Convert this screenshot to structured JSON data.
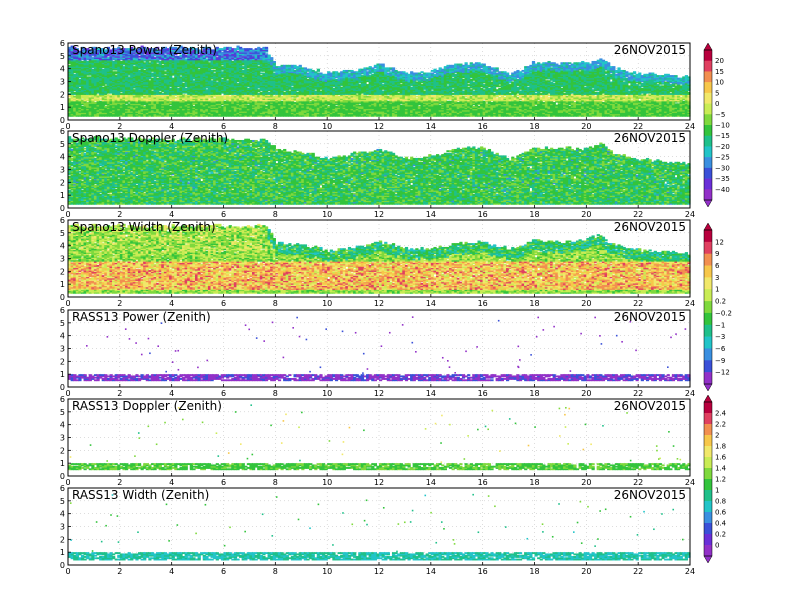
{
  "figure": {
    "date": "26NOV2015",
    "x_ticks": [
      "0",
      "2",
      "4",
      "6",
      "8",
      "10",
      "12",
      "14",
      "16",
      "18",
      "20",
      "22",
      "24"
    ],
    "y_ticks": [
      "0",
      "1",
      "2",
      "3",
      "4",
      "5",
      "6"
    ]
  },
  "colorbars": [
    {
      "id": "spano-power-doppler",
      "labels": [
        "20",
        "15",
        "10",
        "5",
        "0",
        "−5",
        "−10",
        "−15",
        "−20",
        "−25",
        "−30",
        "−35",
        "−40"
      ],
      "colors": [
        "#b8003d",
        "#e04060",
        "#f28f50",
        "#f7c74a",
        "#f1e86a",
        "#c9ec55",
        "#7fd93d",
        "#33c43c",
        "#1fc08a",
        "#22c4c8",
        "#3a8fe0",
        "#3a50d8",
        "#6a2fd8",
        "#9230c8"
      ]
    },
    {
      "id": "spano-width-rass-power",
      "labels": [
        "12",
        "9",
        "6",
        "3",
        "1",
        "0.2",
        "−0.2",
        "−1",
        "−3",
        "−6",
        "−9",
        "−12"
      ],
      "colors": [
        "#b8003d",
        "#e04060",
        "#f28f50",
        "#f7c74a",
        "#f1e86a",
        "#c9ec55",
        "#7fd93d",
        "#33c43c",
        "#1fc08a",
        "#22c4c8",
        "#3a8fe0",
        "#3a50d8",
        "#9230c8"
      ]
    },
    {
      "id": "rass-doppler-width",
      "labels": [
        "2.4",
        "2.2",
        "2",
        "1.8",
        "1.6",
        "1.4",
        "1.2",
        "1",
        "0.8",
        "0.6",
        "0.4",
        "0.2",
        "0"
      ],
      "colors": [
        "#b8003d",
        "#e04060",
        "#f28f50",
        "#f7c74a",
        "#f1e86a",
        "#c9ec55",
        "#7fd93d",
        "#33c43c",
        "#1fc08a",
        "#22c4c8",
        "#3a8fe0",
        "#3a50d8",
        "#6a2fd8",
        "#9230c8"
      ]
    }
  ],
  "chart_data": [
    {
      "type": "heatmap",
      "title": "Spano13 Power (Zenith)",
      "date": "26NOV2015",
      "xlim": [
        0,
        24
      ],
      "ylim": [
        0,
        6
      ],
      "colorbar": "spano-power-doppler",
      "mode": "spano-power",
      "max_height_profile": {
        "x": [
          0,
          2,
          4,
          6,
          7.6,
          8,
          9,
          10,
          11,
          12,
          13,
          14,
          15,
          16,
          17,
          18,
          19,
          20,
          20.5,
          21,
          22,
          23,
          24
        ],
        "y": [
          5.6,
          5.6,
          5.6,
          5.6,
          5.6,
          4.2,
          4.2,
          3.6,
          3.8,
          4.3,
          3.6,
          3.8,
          4.4,
          4.4,
          3.5,
          4.5,
          4.4,
          4.4,
          4.8,
          4.0,
          3.6,
          3.5,
          3.3
        ]
      },
      "bright_layer_height": [
        1.5,
        2.0
      ]
    },
    {
      "type": "heatmap",
      "title": "Spano13 Doppler (Zenith)",
      "date": "26NOV2015",
      "xlim": [
        0,
        24
      ],
      "ylim": [
        0,
        6
      ],
      "colorbar": "spano-power-doppler",
      "mode": "spano-doppler",
      "max_height_profile": {
        "x": [
          0,
          2,
          4,
          6,
          7.6,
          8,
          9,
          10,
          11,
          12,
          13,
          14,
          15,
          16,
          17,
          18,
          19,
          20,
          20.5,
          21,
          22,
          23,
          24
        ],
        "y": [
          5.4,
          5.4,
          5.3,
          5.3,
          5.3,
          4.5,
          4.3,
          3.8,
          4.2,
          4.5,
          3.8,
          4.0,
          4.6,
          4.6,
          3.8,
          4.6,
          4.6,
          4.6,
          5.0,
          4.2,
          3.8,
          3.6,
          3.4
        ]
      }
    },
    {
      "type": "heatmap",
      "title": "Spano13 Width (Zenith)",
      "date": "26NOV2015",
      "xlim": [
        0,
        24
      ],
      "ylim": [
        0,
        6
      ],
      "colorbar": "spano-width-rass-power",
      "mode": "spano-width",
      "max_height_profile": {
        "x": [
          0,
          2,
          4,
          6,
          7.6,
          8,
          9,
          10,
          11,
          12,
          13,
          14,
          15,
          16,
          17,
          18,
          19,
          20,
          20.5,
          21,
          22,
          23,
          24
        ],
        "y": [
          5.5,
          5.5,
          5.5,
          5.5,
          5.5,
          4.2,
          4.0,
          3.6,
          3.8,
          4.2,
          3.8,
          3.7,
          4.2,
          4.2,
          3.7,
          4.4,
          4.2,
          4.5,
          4.8,
          4.0,
          3.6,
          3.5,
          3.3
        ]
      },
      "high_width_layer": [
        0.6,
        2.8
      ]
    },
    {
      "type": "heatmap",
      "title": "RASS13 Power (Zenith)",
      "date": "26NOV2015",
      "xlim": [
        0,
        24
      ],
      "ylim": [
        0,
        6
      ],
      "colorbar": "spano-width-rass-power",
      "mode": "rass-power",
      "layer_height": [
        0.5,
        0.9
      ]
    },
    {
      "type": "heatmap",
      "title": "RASS13 Doppler (Zenith)",
      "date": "26NOV2015",
      "xlim": [
        0,
        24
      ],
      "ylim": [
        0,
        6
      ],
      "colorbar": "rass-doppler-width",
      "mode": "rass-doppler",
      "layer_height": [
        0.5,
        0.9
      ]
    },
    {
      "type": "heatmap",
      "title": "RASS13 Width (Zenith)",
      "date": "26NOV2015",
      "xlim": [
        0,
        24
      ],
      "ylim": [
        0,
        6
      ],
      "colorbar": "rass-doppler-width",
      "mode": "rass-width",
      "layer_height": [
        0.4,
        0.9
      ]
    }
  ]
}
